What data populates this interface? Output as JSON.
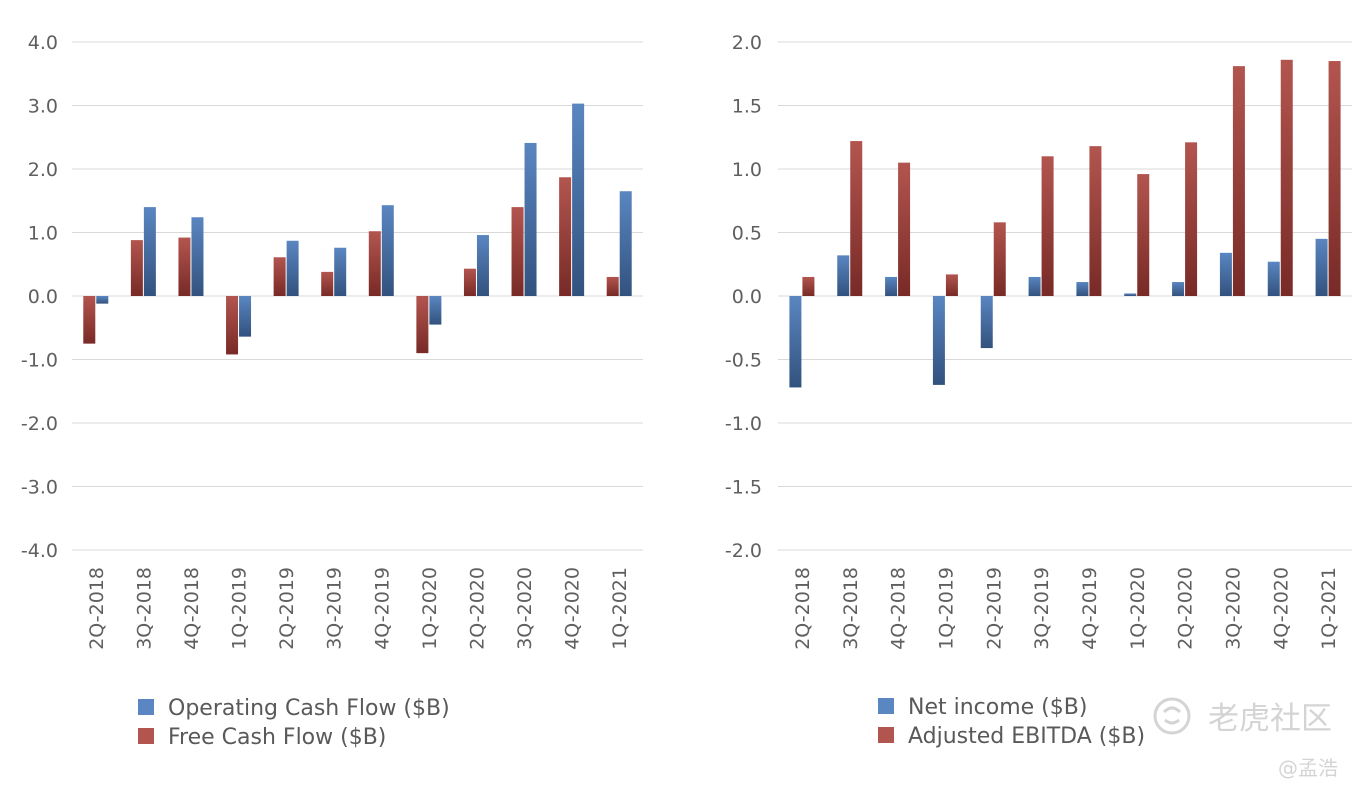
{
  "colors": {
    "blue_top": "#5a86c1",
    "blue_bottom": "#32527e",
    "red_top": "#b3554f",
    "red_bottom": "#782a26",
    "grid": "#d9d9d9",
    "text": "#5f5f5f"
  },
  "watermark": {
    "brand": "老虎社区",
    "user": "@孟浩",
    "icon": "tiger-logo-icon"
  },
  "chart_data": [
    {
      "type": "bar",
      "categories": [
        "2Q-2018",
        "3Q-2018",
        "4Q-2018",
        "1Q-2019",
        "2Q-2019",
        "3Q-2019",
        "4Q-2019",
        "1Q-2020",
        "2Q-2020",
        "3Q-2020",
        "4Q-2020",
        "1Q-2021"
      ],
      "ylim": [
        -4,
        4
      ],
      "yticks": [
        "4.0",
        "3.0",
        "2.0",
        "1.0",
        "0.0",
        "-1.0",
        "-2.0",
        "-3.0",
        "-4.0"
      ],
      "ytick_values": [
        4,
        3,
        2,
        1,
        0,
        -1,
        -2,
        -3,
        -4
      ],
      "grid": true,
      "legend_position": "bottom-left",
      "series": [
        {
          "name": "Free Cash Flow ($B)",
          "color": "red",
          "values": [
            -0.75,
            0.88,
            0.92,
            -0.92,
            0.61,
            0.38,
            1.02,
            -0.9,
            0.43,
            1.4,
            1.87,
            0.3
          ]
        },
        {
          "name": "Operating Cash Flow ($B)",
          "color": "blue",
          "values": [
            -0.12,
            1.4,
            1.24,
            -0.64,
            0.87,
            0.76,
            1.43,
            -0.45,
            0.96,
            2.41,
            3.03,
            1.65
          ]
        }
      ],
      "legend_order": [
        1,
        0
      ]
    },
    {
      "type": "bar",
      "categories": [
        "2Q-2018",
        "3Q-2018",
        "4Q-2018",
        "1Q-2019",
        "2Q-2019",
        "3Q-2019",
        "4Q-2019",
        "1Q-2020",
        "2Q-2020",
        "3Q-2020",
        "4Q-2020",
        "1Q-2021"
      ],
      "ylim": [
        -2,
        2
      ],
      "yticks": [
        "2.0",
        "1.5",
        "1.0",
        "0.5",
        "0.0",
        "-0.5",
        "-1.0",
        "-1.5",
        "-2.0"
      ],
      "ytick_values": [
        2,
        1.5,
        1,
        0.5,
        0,
        -0.5,
        -1,
        -1.5,
        -2
      ],
      "grid": true,
      "legend_position": "bottom-right",
      "series": [
        {
          "name": "Net income ($B)",
          "color": "blue",
          "values": [
            -0.72,
            0.32,
            0.15,
            -0.7,
            -0.41,
            0.15,
            0.11,
            0.02,
            0.11,
            0.34,
            0.27,
            0.45
          ]
        },
        {
          "name": "Adjusted EBITDA ($B)",
          "color": "red",
          "values": [
            0.15,
            1.22,
            1.05,
            0.17,
            0.58,
            1.1,
            1.18,
            0.96,
            1.21,
            1.81,
            1.86,
            1.85
          ]
        }
      ],
      "legend_order": [
        0,
        1
      ]
    }
  ]
}
